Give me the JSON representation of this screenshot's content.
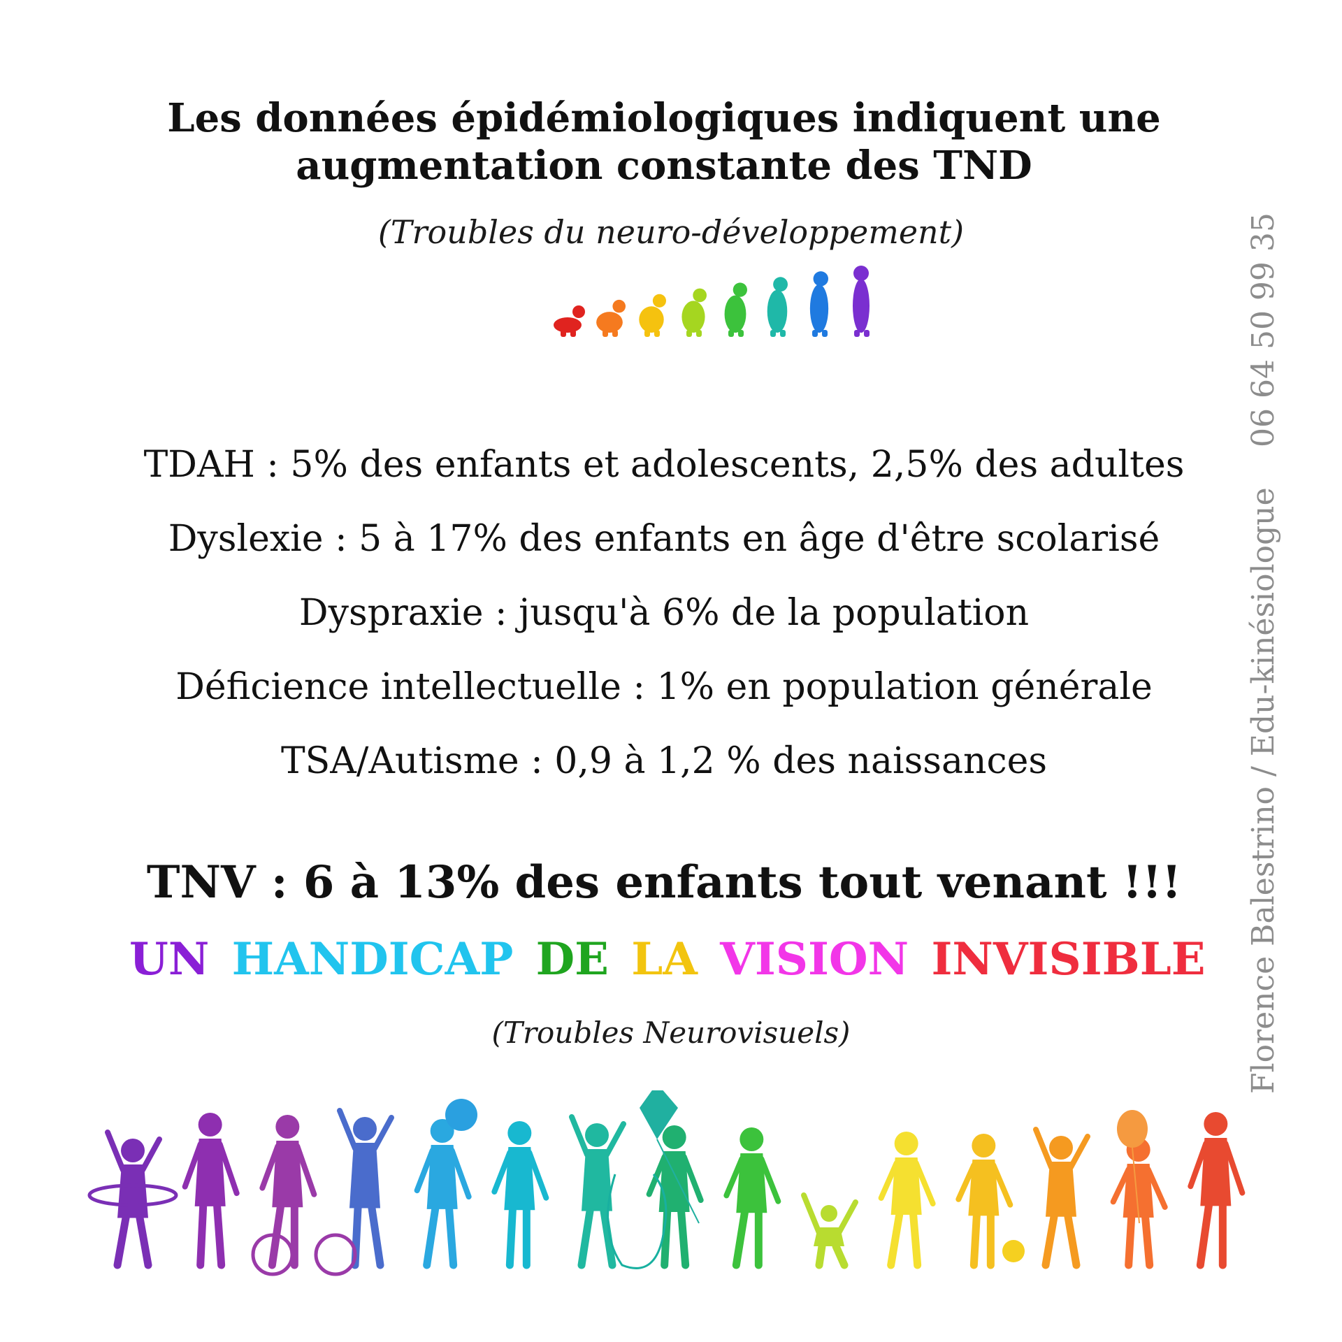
{
  "title": {
    "line1": "Les données épidémiologiques indiquent une",
    "line2": "augmentation constante des TND"
  },
  "subtitle": "(Troubles du neuro-développement)",
  "stats": [
    "TDAH : 5% des enfants et adolescents, 2,5% des adultes",
    "Dyslexie : 5 à 17% des enfants en âge d'être scolarisé",
    "Dyspraxie : jusqu'à 6% de la population",
    "Déficience intellectuelle : 1% en population générale",
    "TSA/Autisme : 0,9 à 1,2 % des naissances"
  ],
  "highlight": "TNV : 6 à 13% des enfants tout venant !!!",
  "banner": [
    {
      "text": "UN",
      "color": "#8a1fd6"
    },
    {
      "text": "HANDICAP",
      "color": "#21c4ee"
    },
    {
      "text": "DE",
      "color": "#1fa51f"
    },
    {
      "text": "LA",
      "color": "#f2c40f"
    },
    {
      "text": "VISION",
      "color": "#f236e8"
    },
    {
      "text": "INVISIBLE",
      "color": "#ef2d3e"
    }
  ],
  "note": "(Troubles Neurovisuels)",
  "side": {
    "credit": "Florence Balestrino / Edu-kinésiologue",
    "phone": "06 64 50 99 35"
  },
  "illustrations": {
    "growth_icon": "baby-to-child-growth-silhouettes-icon",
    "kids_icon": "rainbow-children-playing-silhouettes-icon",
    "rainbow": [
      "#e0231f",
      "#f57a1f",
      "#f5c20f",
      "#a5d620",
      "#3cc23c",
      "#1fb8a8",
      "#1f7ae0",
      "#7a2fd0"
    ],
    "kids_rainbow": [
      "#7a2fb5",
      "#8e2fb0",
      "#9a3aa8",
      "#4a6ccc",
      "#2aa8e0",
      "#18b8d0",
      "#20b8a0",
      "#20b070",
      "#3cc23c",
      "#b8dc30",
      "#f5e030",
      "#f5c020",
      "#f59a20",
      "#f57030",
      "#e84a30"
    ]
  }
}
